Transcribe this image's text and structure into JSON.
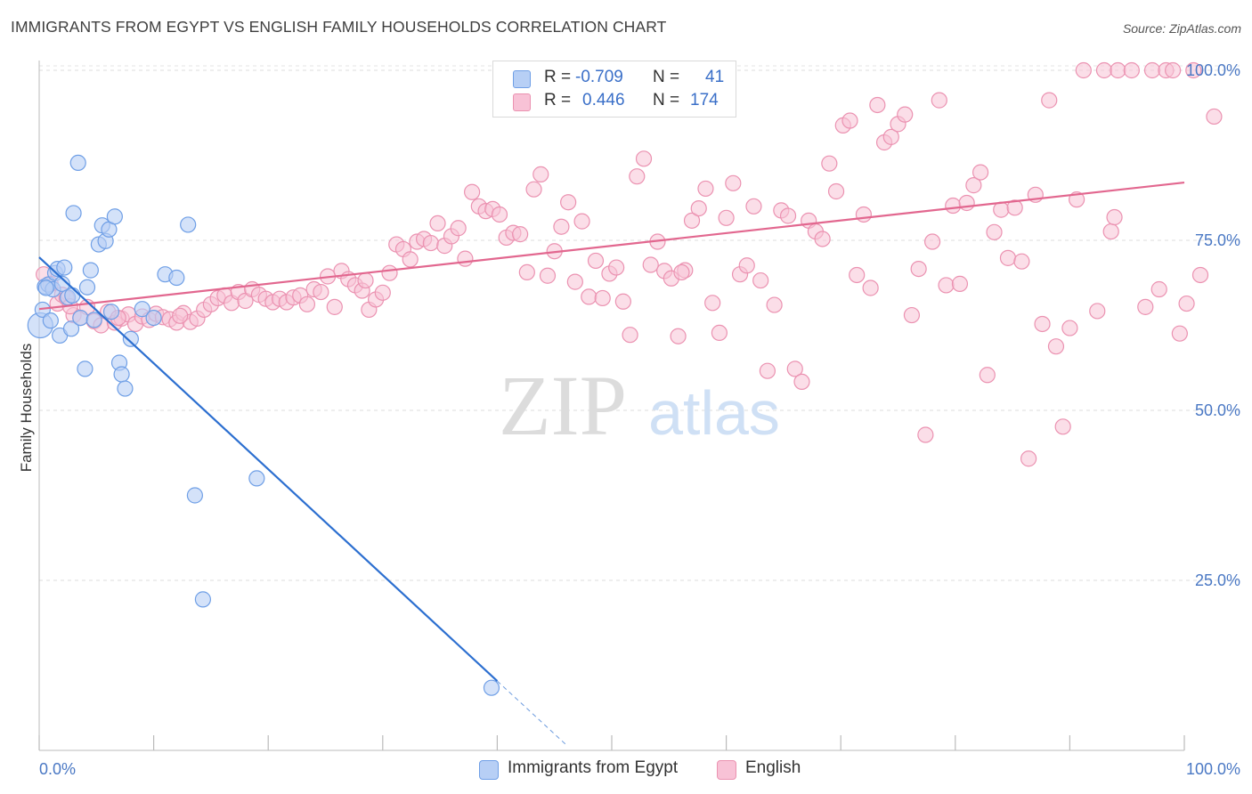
{
  "header": {
    "title": "IMMIGRANTS FROM EGYPT VS ENGLISH FAMILY HOUSEHOLDS CORRELATION CHART",
    "source": "Source: ZipAtlas.com"
  },
  "watermark": {
    "zip": "ZIP",
    "atlas": "atlas"
  },
  "legend": {
    "r_label": "R =",
    "n_label": "N =",
    "rows": [
      {
        "r": "-0.709",
        "n": "41"
      },
      {
        "r": "0.446",
        "n": "174"
      }
    ]
  },
  "bottom_legend": [
    "Immigrants from Egypt",
    "English"
  ],
  "colors": {
    "egypt_fill": "#b7cff5",
    "egypt_stroke": "#6f9fe6",
    "egypt_line": "#2c6fd0",
    "english_fill": "#f8c2d6",
    "english_stroke": "#eb92b1",
    "english_line": "#e2678f",
    "tick_label": "#4a78c4",
    "grid": "#dddddd"
  },
  "chart_data": {
    "type": "scatter",
    "title": "IMMIGRANTS FROM EGYPT VS ENGLISH FAMILY HOUSEHOLDS CORRELATION CHART",
    "ylabel": "Family Households",
    "xlabel": "",
    "xlim": [
      0,
      100
    ],
    "ylim": [
      0,
      102
    ],
    "x_tick_labels": [
      "0.0%",
      "100.0%"
    ],
    "y_ticks": [
      25,
      50,
      75,
      100
    ],
    "y_tick_labels": [
      "25.0%",
      "50.0%",
      "75.0%",
      "100.0%"
    ],
    "grid": true,
    "series": [
      {
        "name": "Immigrants from Egypt",
        "r": -0.709,
        "n": 41,
        "trend": {
          "x0": 0,
          "y0": 72.5,
          "x1": 40,
          "y1": 10.2,
          "dash_to_x": 46
        },
        "points": [
          [
            0.1,
            62.5
          ],
          [
            0.3,
            64.8
          ],
          [
            0.5,
            68.2
          ],
          [
            0.8,
            68.5
          ],
          [
            1.0,
            63.2
          ],
          [
            1.2,
            67.8
          ],
          [
            1.4,
            70.2
          ],
          [
            1.6,
            70.8
          ],
          [
            1.8,
            61.0
          ],
          [
            2.0,
            68.6
          ],
          [
            2.2,
            71.0
          ],
          [
            2.5,
            66.6
          ],
          [
            2.8,
            62.0
          ],
          [
            3.0,
            79.0
          ],
          [
            3.4,
            86.4
          ],
          [
            3.6,
            63.6
          ],
          [
            4.0,
            56.1
          ],
          [
            4.2,
            68.1
          ],
          [
            4.5,
            70.6
          ],
          [
            5.2,
            74.4
          ],
          [
            5.5,
            77.2
          ],
          [
            5.8,
            74.9
          ],
          [
            6.1,
            76.6
          ],
          [
            6.6,
            78.5
          ],
          [
            7.0,
            57.0
          ],
          [
            7.2,
            55.3
          ],
          [
            7.5,
            53.2
          ],
          [
            8.0,
            60.5
          ],
          [
            9.0,
            64.9
          ],
          [
            10.0,
            63.6
          ],
          [
            11.0,
            70.0
          ],
          [
            12.0,
            69.5
          ],
          [
            13.0,
            77.3
          ],
          [
            13.6,
            37.5
          ],
          [
            14.3,
            22.2
          ],
          [
            19.0,
            40.0
          ],
          [
            39.5,
            9.2
          ],
          [
            6.3,
            64.5
          ],
          [
            4.8,
            63.3
          ],
          [
            2.9,
            66.9
          ],
          [
            0.6,
            68.0
          ]
        ]
      },
      {
        "name": "English",
        "r": 0.446,
        "n": 174,
        "trend": {
          "x0": 0,
          "y0": 64.9,
          "x1": 100,
          "y1": 83.5
        },
        "points": [
          [
            0.4,
            70.0
          ],
          [
            1.0,
            68.6
          ],
          [
            1.6,
            65.7
          ],
          [
            2.0,
            67.0
          ],
          [
            2.4,
            66.5
          ],
          [
            3.0,
            64.0
          ],
          [
            3.6,
            63.6
          ],
          [
            4.2,
            65.2
          ],
          [
            4.8,
            63.1
          ],
          [
            5.4,
            62.5
          ],
          [
            6.0,
            64.5
          ],
          [
            6.6,
            62.9
          ],
          [
            7.2,
            63.5
          ],
          [
            7.8,
            64.1
          ],
          [
            8.4,
            62.7
          ],
          [
            9.0,
            63.8
          ],
          [
            9.6,
            63.3
          ],
          [
            10.2,
            64.2
          ],
          [
            10.8,
            63.7
          ],
          [
            11.4,
            63.4
          ],
          [
            12.0,
            62.9
          ],
          [
            12.6,
            64.3
          ],
          [
            13.2,
            63.0
          ],
          [
            13.8,
            63.5
          ],
          [
            14.4,
            64.8
          ],
          [
            15.0,
            65.6
          ],
          [
            15.6,
            66.5
          ],
          [
            16.2,
            66.9
          ],
          [
            16.8,
            65.8
          ],
          [
            17.4,
            67.4
          ],
          [
            18.0,
            66.1
          ],
          [
            18.6,
            67.8
          ],
          [
            19.2,
            67.0
          ],
          [
            19.8,
            66.4
          ],
          [
            20.4,
            65.9
          ],
          [
            21.0,
            66.4
          ],
          [
            21.6,
            65.9
          ],
          [
            22.2,
            66.6
          ],
          [
            22.8,
            66.9
          ],
          [
            23.4,
            65.6
          ],
          [
            24.0,
            67.8
          ],
          [
            24.6,
            67.4
          ],
          [
            25.2,
            69.7
          ],
          [
            25.8,
            65.2
          ],
          [
            26.4,
            70.5
          ],
          [
            27.0,
            69.3
          ],
          [
            27.6,
            68.4
          ],
          [
            28.2,
            67.6
          ],
          [
            28.8,
            64.8
          ],
          [
            29.4,
            66.3
          ],
          [
            30.0,
            67.3
          ],
          [
            30.6,
            70.2
          ],
          [
            31.2,
            74.4
          ],
          [
            31.8,
            73.7
          ],
          [
            32.4,
            72.2
          ],
          [
            33.0,
            74.8
          ],
          [
            33.6,
            75.2
          ],
          [
            34.2,
            74.6
          ],
          [
            34.8,
            77.5
          ],
          [
            35.4,
            74.2
          ],
          [
            36.0,
            75.6
          ],
          [
            36.6,
            76.8
          ],
          [
            37.2,
            72.3
          ],
          [
            37.8,
            82.1
          ],
          [
            38.4,
            80.0
          ],
          [
            39.0,
            79.3
          ],
          [
            39.6,
            79.6
          ],
          [
            40.2,
            78.8
          ],
          [
            40.8,
            75.4
          ],
          [
            41.4,
            76.1
          ],
          [
            42.0,
            75.9
          ],
          [
            42.6,
            70.3
          ],
          [
            43.2,
            82.5
          ],
          [
            43.8,
            84.7
          ],
          [
            44.4,
            69.8
          ],
          [
            45.0,
            73.4
          ],
          [
            45.6,
            77.0
          ],
          [
            46.2,
            80.6
          ],
          [
            46.8,
            68.9
          ],
          [
            47.4,
            77.8
          ],
          [
            48.0,
            66.7
          ],
          [
            48.6,
            72.0
          ],
          [
            49.2,
            66.5
          ],
          [
            49.8,
            70.1
          ],
          [
            50.4,
            71.0
          ],
          [
            51.0,
            66.0
          ],
          [
            51.6,
            61.1
          ],
          [
            52.2,
            84.4
          ],
          [
            52.8,
            87.0
          ],
          [
            53.4,
            71.4
          ],
          [
            54.0,
            74.8
          ],
          [
            54.6,
            70.5
          ],
          [
            55.2,
            69.4
          ],
          [
            55.8,
            60.9
          ],
          [
            56.4,
            70.6
          ],
          [
            57.0,
            77.9
          ],
          [
            57.6,
            79.7
          ],
          [
            58.2,
            82.6
          ],
          [
            58.8,
            65.8
          ],
          [
            59.4,
            61.4
          ],
          [
            60.0,
            78.3
          ],
          [
            60.6,
            83.4
          ],
          [
            61.2,
            70.0
          ],
          [
            61.8,
            71.3
          ],
          [
            62.4,
            80.0
          ],
          [
            63.0,
            69.1
          ],
          [
            63.6,
            55.8
          ],
          [
            64.2,
            65.5
          ],
          [
            64.8,
            79.4
          ],
          [
            65.4,
            78.6
          ],
          [
            66.0,
            56.1
          ],
          [
            66.6,
            54.2
          ],
          [
            67.2,
            77.9
          ],
          [
            67.8,
            76.3
          ],
          [
            68.4,
            75.2
          ],
          [
            69.0,
            86.3
          ],
          [
            69.6,
            82.2
          ],
          [
            70.2,
            91.9
          ],
          [
            70.8,
            92.6
          ],
          [
            71.4,
            69.9
          ],
          [
            72.0,
            78.8
          ],
          [
            72.6,
            68.0
          ],
          [
            73.2,
            94.9
          ],
          [
            73.8,
            89.4
          ],
          [
            74.4,
            90.2
          ],
          [
            75.0,
            92.1
          ],
          [
            75.6,
            93.5
          ],
          [
            76.2,
            64.0
          ],
          [
            76.8,
            70.8
          ],
          [
            77.4,
            46.4
          ],
          [
            78.0,
            74.8
          ],
          [
            78.6,
            95.6
          ],
          [
            79.2,
            68.4
          ],
          [
            79.8,
            80.1
          ],
          [
            80.4,
            68.6
          ],
          [
            81.0,
            80.5
          ],
          [
            81.6,
            83.1
          ],
          [
            82.2,
            85.0
          ],
          [
            82.8,
            55.2
          ],
          [
            83.4,
            76.2
          ],
          [
            84.0,
            79.5
          ],
          [
            84.6,
            72.4
          ],
          [
            85.2,
            79.8
          ],
          [
            85.8,
            71.9
          ],
          [
            86.4,
            42.9
          ],
          [
            87.0,
            81.7
          ],
          [
            87.6,
            62.7
          ],
          [
            88.2,
            95.6
          ],
          [
            88.8,
            59.4
          ],
          [
            89.4,
            47.6
          ],
          [
            90.0,
            62.1
          ],
          [
            90.6,
            81.0
          ],
          [
            91.2,
            100.0
          ],
          [
            92.4,
            64.6
          ],
          [
            93.0,
            100.0
          ],
          [
            93.6,
            76.3
          ],
          [
            94.2,
            100.0
          ],
          [
            95.4,
            100.0
          ],
          [
            96.6,
            65.2
          ],
          [
            97.2,
            100.0
          ],
          [
            97.8,
            67.8
          ],
          [
            98.4,
            100.0
          ],
          [
            99.0,
            100.0
          ],
          [
            99.6,
            61.3
          ],
          [
            100.2,
            65.7
          ],
          [
            100.8,
            100.0
          ],
          [
            101.4,
            69.9
          ],
          [
            102.6,
            93.2
          ],
          [
            2.7,
            65.3
          ],
          [
            6.9,
            63.6
          ],
          [
            12.3,
            63.9
          ],
          [
            28.5,
            69.1
          ],
          [
            56.1,
            70.3
          ],
          [
            93.9,
            78.4
          ]
        ]
      }
    ]
  }
}
